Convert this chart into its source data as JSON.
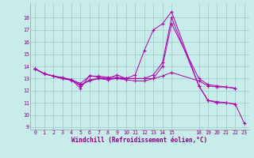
{
  "xlabel": "Windchill (Refroidissement éolien,°C)",
  "background_color": "#c8ecea",
  "line_color": "#aa00aa",
  "grid_color": "#99cccc",
  "xlim": [
    -0.5,
    23.5
  ],
  "ylim": [
    8.8,
    19.2
  ],
  "yticks": [
    9,
    10,
    11,
    12,
    13,
    14,
    15,
    16,
    17,
    18
  ],
  "xticks": [
    0,
    1,
    2,
    3,
    4,
    5,
    6,
    7,
    8,
    9,
    10,
    11,
    12,
    13,
    14,
    15,
    18,
    19,
    20,
    21,
    22,
    23
  ],
  "lines": [
    {
      "x": [
        0,
        1,
        2,
        3,
        4,
        5,
        6,
        7,
        8,
        9,
        10,
        11,
        12,
        13,
        14,
        15,
        18,
        19,
        20,
        21,
        22
      ],
      "y": [
        13.8,
        13.4,
        13.2,
        13.0,
        12.9,
        12.2,
        13.25,
        13.1,
        13.0,
        13.3,
        13.0,
        13.0,
        13.0,
        13.3,
        14.3,
        18.0,
        12.4,
        11.2,
        11.0,
        11.0,
        10.9
      ]
    },
    {
      "x": [
        0,
        1,
        2,
        3,
        4,
        5,
        6,
        7,
        8,
        9,
        10,
        11,
        12,
        13,
        14,
        15,
        18,
        19,
        20,
        21,
        22
      ],
      "y": [
        13.8,
        13.4,
        13.2,
        13.1,
        12.9,
        12.6,
        13.2,
        13.2,
        13.1,
        13.1,
        13.0,
        13.0,
        13.0,
        13.0,
        14.0,
        17.5,
        13.0,
        12.5,
        12.4,
        12.3,
        12.2
      ]
    },
    {
      "x": [
        0,
        1,
        2,
        3,
        4,
        5,
        6,
        7,
        8,
        9,
        10,
        11,
        12,
        13,
        14,
        15,
        18,
        19,
        20,
        21,
        22,
        23
      ],
      "y": [
        13.8,
        13.4,
        13.2,
        13.0,
        12.9,
        12.4,
        12.9,
        13.0,
        12.9,
        13.0,
        13.0,
        13.3,
        15.3,
        17.0,
        17.5,
        18.5,
        12.4,
        11.2,
        11.1,
        11.0,
        10.9,
        9.3
      ]
    },
    {
      "x": [
        0,
        1,
        2,
        3,
        4,
        5,
        6,
        7,
        8,
        9,
        10,
        11,
        12,
        13,
        14,
        15,
        18,
        19,
        20,
        21,
        22
      ],
      "y": [
        13.8,
        13.4,
        13.2,
        13.0,
        12.85,
        12.5,
        12.8,
        13.0,
        13.0,
        13.0,
        12.9,
        12.8,
        12.8,
        13.0,
        13.2,
        13.5,
        12.8,
        12.4,
        12.3,
        12.3,
        12.2
      ]
    }
  ]
}
